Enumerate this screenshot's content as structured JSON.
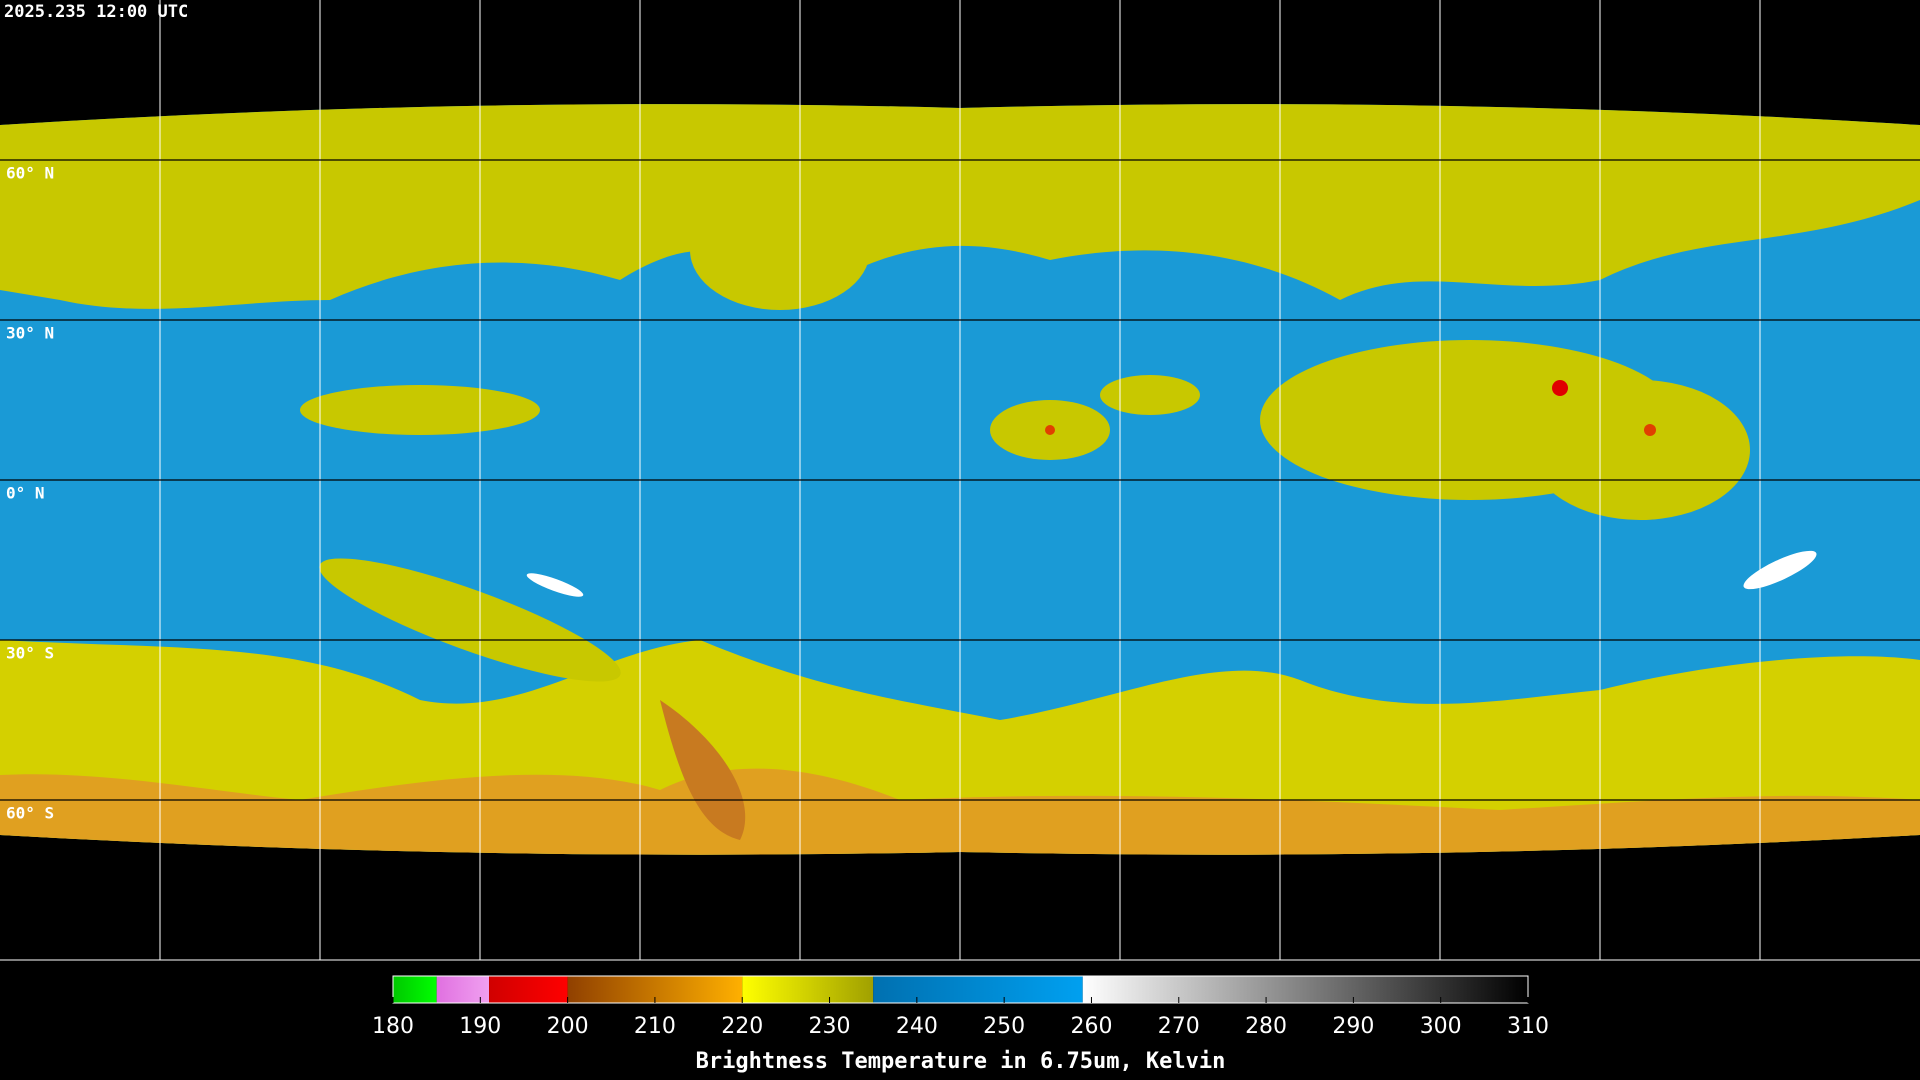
{
  "header": {
    "timestamp": "2025.235 12:00 UTC"
  },
  "map": {
    "lat_labels": [
      {
        "lat": 60,
        "label": "60° N"
      },
      {
        "lat": 30,
        "label": "30° N"
      },
      {
        "lat": 0,
        "label": "0° N"
      },
      {
        "lat": -30,
        "label": "30° S"
      },
      {
        "lat": -60,
        "label": "60° S"
      }
    ]
  },
  "colorbar": {
    "title": "Brightness Temperature in 6.75um, Kelvin",
    "range": [
      180,
      310
    ],
    "ticks": [
      180,
      190,
      200,
      210,
      220,
      230,
      240,
      250,
      260,
      270,
      280,
      290,
      300,
      310
    ],
    "segments": [
      {
        "from": 180,
        "to": 185,
        "colors": [
          "#00c800",
          "#00ff00"
        ]
      },
      {
        "from": 185,
        "to": 191,
        "colors": [
          "#e070e0",
          "#f0a0f0"
        ]
      },
      {
        "from": 191,
        "to": 200,
        "colors": [
          "#d00000",
          "#ff0000"
        ]
      },
      {
        "from": 200,
        "to": 220,
        "colors": [
          "#904000",
          "#ffb000"
        ]
      },
      {
        "from": 220,
        "to": 235,
        "colors": [
          "#ffff00",
          "#a0a000"
        ]
      },
      {
        "from": 235,
        "to": 259,
        "colors": [
          "#0070b0",
          "#00a0f0"
        ]
      },
      {
        "from": 259,
        "to": 310,
        "colors": [
          "#ffffff",
          "#000000"
        ]
      }
    ]
  }
}
